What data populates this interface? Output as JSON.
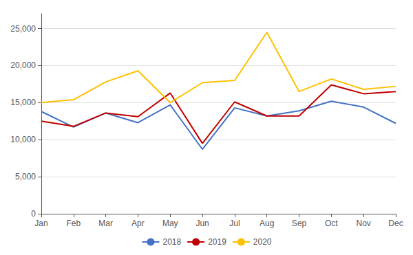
{
  "chart_data": {
    "type": "line",
    "categories": [
      "Jan",
      "Feb",
      "Mar",
      "Apr",
      "May",
      "Jun",
      "Jul",
      "Aug",
      "Sep",
      "Oct",
      "Nov",
      "Dec"
    ],
    "series": [
      {
        "name": "2018",
        "color": "#4472C4",
        "values": [
          13800,
          11700,
          13600,
          12300,
          14700,
          8700,
          14300,
          13200,
          13900,
          15200,
          14400,
          12200
        ]
      },
      {
        "name": "2019",
        "color": "#C00000",
        "values": [
          12500,
          11800,
          13600,
          13100,
          16300,
          9500,
          15100,
          13200,
          13200,
          17400,
          16200,
          16500
        ]
      },
      {
        "name": "2020",
        "color": "#FFC000",
        "values": [
          15000,
          15400,
          17800,
          19300,
          15000,
          17700,
          18000,
          24500,
          16500,
          18200,
          16800,
          17200
        ]
      }
    ],
    "ylim": [
      0,
      27000
    ],
    "yticks": [
      0,
      {
        "value": 5000,
        "label": "5,000"
      },
      {
        "value": 10000,
        "label": "10,000"
      },
      {
        "value": 15000,
        "label": "15,000"
      },
      {
        "value": 20000,
        "label": "20,000"
      },
      {
        "value": 25000,
        "label": "25,000"
      }
    ],
    "grid": true,
    "legend": "bottom"
  }
}
